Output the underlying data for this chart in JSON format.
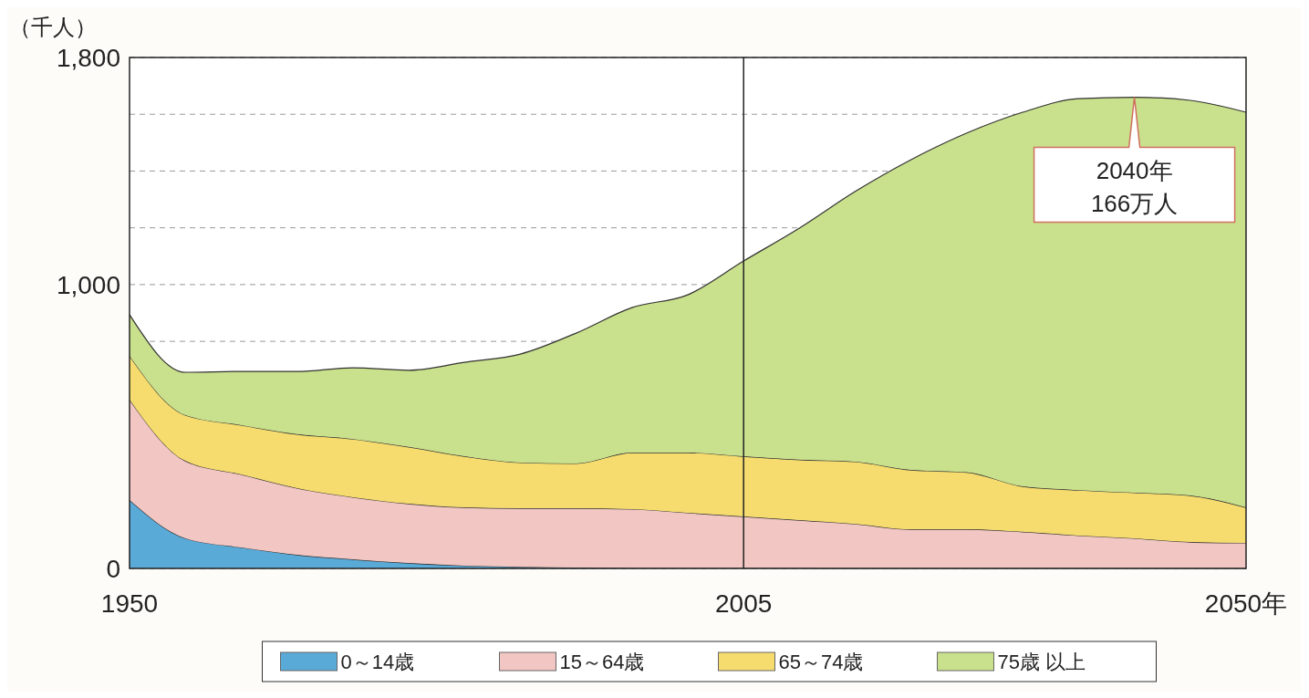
{
  "chart_data": {
    "type": "area",
    "stacked": true,
    "ylabel": "（千人）",
    "x": [
      1950,
      1955,
      1960,
      1965,
      1970,
      1975,
      1980,
      1985,
      1990,
      1995,
      2000,
      2005,
      2010,
      2015,
      2020,
      2025,
      2030,
      2035,
      2040,
      2045,
      2050
    ],
    "series": [
      {
        "name": "0～14歳",
        "color": "#5aaad8",
        "values": [
          241,
          106,
          74,
          48,
          32,
          19,
          10,
          6,
          3,
          2,
          2,
          2,
          2,
          1,
          1,
          1,
          1,
          1,
          1,
          1,
          1
        ]
      },
      {
        "name": "15～64歳",
        "color": "#f2c6c2",
        "values": [
          354,
          273,
          257,
          235,
          219,
          209,
          205,
          206,
          209,
          207,
          194,
          181,
          168,
          156,
          137,
          137,
          128,
          115,
          105,
          92,
          89
        ]
      },
      {
        "name": "65～74歳",
        "color": "#f6dc6e",
        "values": [
          154,
          161,
          174,
          190,
          205,
          200,
          180,
          161,
          158,
          199,
          212,
          212,
          213,
          219,
          209,
          201,
          160,
          160,
          161,
          164,
          125
        ]
      },
      {
        "name": "75歳 以上",
        "color": "#c9e08c",
        "values": [
          145,
          151,
          189,
          221,
          251,
          270,
          331,
          382,
          459,
          511,
          556,
          688,
          816,
          952,
          1093,
          1195,
          1318,
          1379,
          1393,
          1392,
          1392
        ]
      }
    ],
    "xlim": [
      1950,
      2050
    ],
    "xticks": [
      1950,
      2005,
      {
        "value": 2050,
        "label": "2050年"
      }
    ],
    "ylim": [
      0,
      1800
    ],
    "yticks": [
      0,
      {
        "value": 800,
        "label": null
      },
      {
        "value": 1000,
        "label": "1,000"
      },
      {
        "value": 1200,
        "label": null
      },
      {
        "value": 1400,
        "label": null
      },
      {
        "value": 1600,
        "label": null
      },
      {
        "value": 1800,
        "label": "1,800"
      }
    ],
    "grid": "y",
    "legend": "bottom",
    "ref_lines": [
      {
        "axis": "x",
        "value": 2005,
        "color": "#222222"
      }
    ],
    "annotations": [
      {
        "text": "2040年\n166万人",
        "x": 2040,
        "y": 1660
      }
    ]
  }
}
